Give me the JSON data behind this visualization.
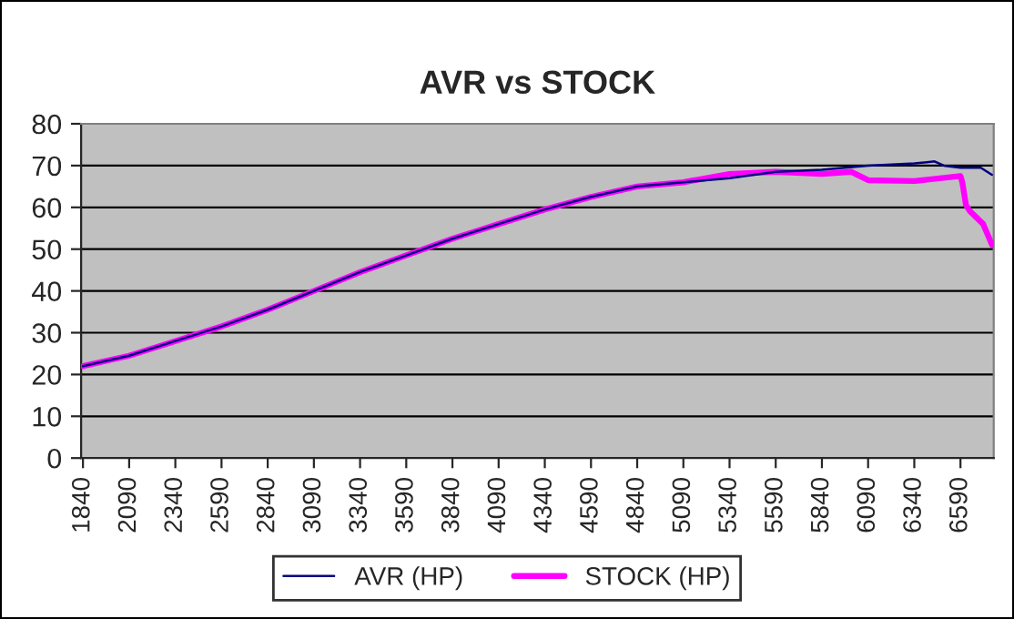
{
  "chart_data": {
    "type": "line",
    "title": "AVR vs STOCK",
    "xlim": [
      1830,
      6770
    ],
    "xticks": [
      1840,
      2090,
      2340,
      2590,
      2840,
      3090,
      3340,
      3590,
      3840,
      4090,
      4340,
      4590,
      4840,
      5090,
      5340,
      5590,
      5840,
      6090,
      6340,
      6590
    ],
    "ylim": [
      0,
      80
    ],
    "yticks": [
      0,
      10,
      20,
      30,
      40,
      50,
      60,
      70,
      80
    ],
    "grid": "y",
    "legend": "bottom",
    "marker": "none",
    "line_style": "solid",
    "series": [
      {
        "name": "AVR (HP)",
        "color": "#000080",
        "x": [
          1840,
          2090,
          2340,
          2590,
          2840,
          3090,
          3340,
          3590,
          3840,
          4090,
          4340,
          4590,
          4840,
          5090,
          5340,
          5590,
          5840,
          6090,
          6340,
          6450,
          6500,
          6590,
          6700,
          6760
        ],
        "values": [
          22,
          24.5,
          28,
          31.5,
          35.5,
          40,
          44.5,
          48.5,
          52.5,
          56,
          59.5,
          62.5,
          65,
          66,
          67,
          68.5,
          69,
          70,
          70.5,
          71,
          70,
          69.5,
          69.5,
          67.8
        ]
      },
      {
        "name": "STOCK (HP)",
        "color": "#ff00ff",
        "x": [
          1840,
          2090,
          2340,
          2590,
          2840,
          3090,
          3340,
          3590,
          3840,
          4090,
          4340,
          4590,
          4840,
          5090,
          5340,
          5590,
          5840,
          6000,
          6090,
          6340,
          6590,
          6600,
          6620,
          6643,
          6713,
          6761
        ],
        "values": [
          22,
          24.5,
          28,
          31.5,
          35.5,
          40,
          44.5,
          48.5,
          52.5,
          56,
          59.5,
          62.5,
          65,
          66,
          68,
          68.5,
          68,
          68.5,
          66.5,
          66.3,
          67.5,
          66,
          60.5,
          59,
          56,
          51
        ]
      }
    ]
  }
}
